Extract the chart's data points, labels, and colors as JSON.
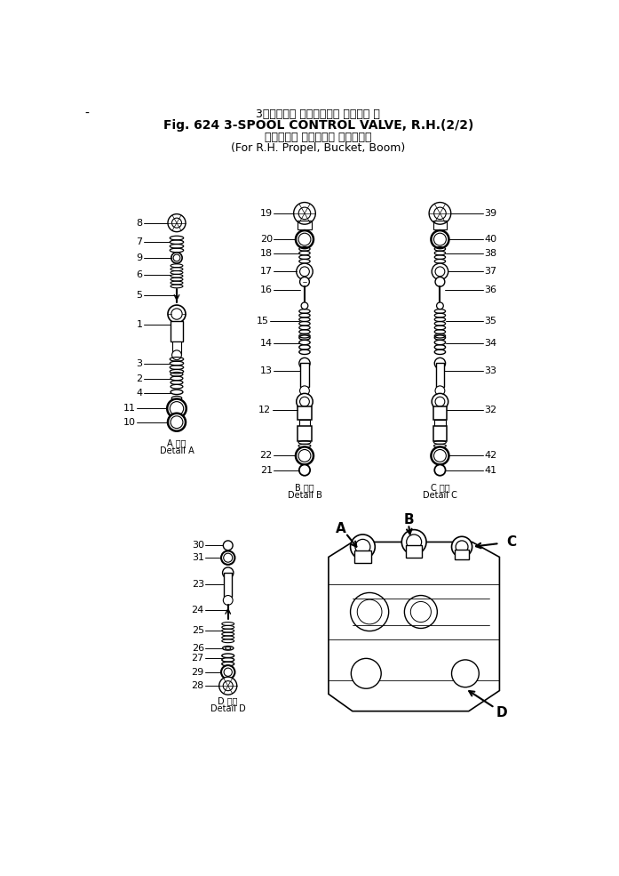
{
  "title_line1": "3・スプール コントロール バルブ， 右",
  "title_line2": "Fig. 624 3-SPOOL CONTROL VALVE, R.H.(2/2)",
  "title_line3": "（右走行， バケット， ブーム用）",
  "title_line4": "(For R.H. Propel, Bucket, Boom)",
  "bg_color": "#ffffff",
  "text_color": "#000000"
}
